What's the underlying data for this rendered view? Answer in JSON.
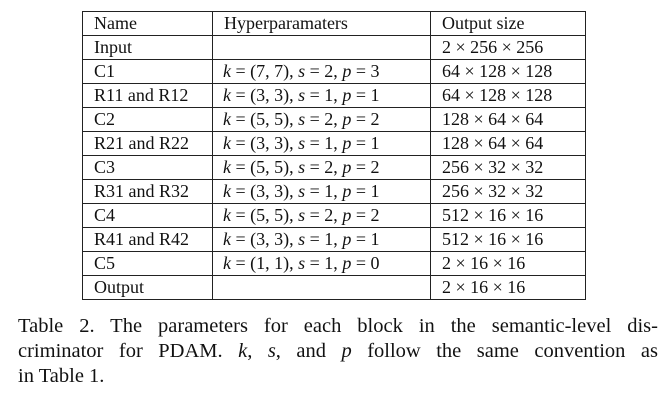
{
  "table": {
    "headers": [
      "Name",
      "Hyperparamaters",
      "Output size"
    ],
    "rows": [
      {
        "name": "Input",
        "hyper": "",
        "output": "2 × 256 × 256"
      },
      {
        "name": "C1",
        "hyper": "k = (7, 7), s = 2, p = 3",
        "output": "64 × 128 × 128"
      },
      {
        "name": "R11 and R12",
        "hyper": "k = (3, 3), s = 1, p = 1",
        "output": "64 × 128 × 128"
      },
      {
        "name": "C2",
        "hyper": "k = (5, 5), s = 2, p = 2",
        "output": "128 × 64 × 64"
      },
      {
        "name": "R21 and R22",
        "hyper": "k = (3, 3), s = 1, p = 1",
        "output": "128 × 64 × 64"
      },
      {
        "name": "C3",
        "hyper": "k = (5, 5), s = 2, p = 2",
        "output": "256 × 32 × 32"
      },
      {
        "name": "R31 and R32",
        "hyper": "k = (3, 3), s = 1, p = 1",
        "output": "256 × 32 × 32"
      },
      {
        "name": "C4",
        "hyper": "k = (5, 5), s = 2, p = 2",
        "output": "512 × 16 × 16"
      },
      {
        "name": "R41 and R42",
        "hyper": "k = (3, 3), s = 1, p = 1",
        "output": "512 × 16 × 16"
      },
      {
        "name": "C5",
        "hyper": "k = (1, 1), s = 1, p = 0",
        "output": "2 × 16 × 16"
      },
      {
        "name": "Output",
        "hyper": "",
        "output": "2 × 16 × 16"
      }
    ]
  },
  "caption": {
    "line1": "Table 2. The parameters for each block in the semantic-level dis-",
    "line2": "criminator for PDAM. k, s, and p follow the same convention as",
    "line3": "in Table 1."
  }
}
